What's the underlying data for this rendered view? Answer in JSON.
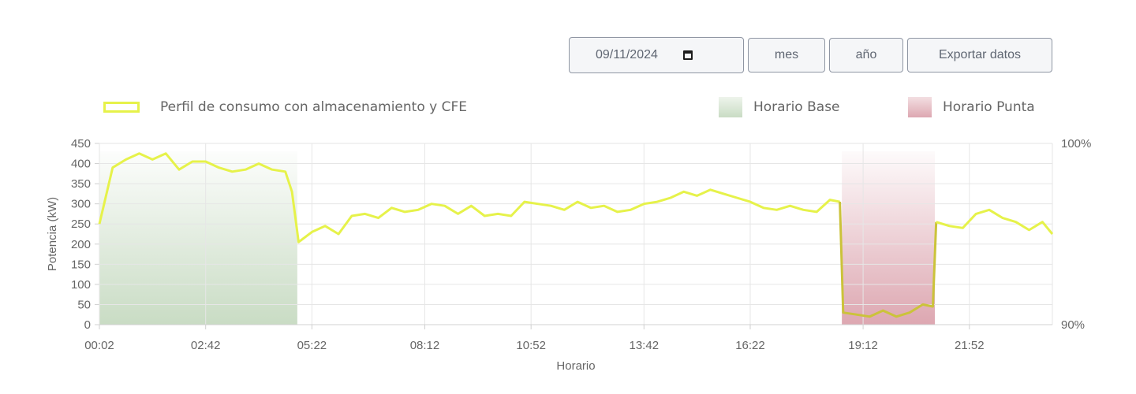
{
  "controls": {
    "date_value": "09/11/2024",
    "month_label": "mes",
    "year_label": "año",
    "export_label": "Exportar datos"
  },
  "legend": {
    "series": "Perfil de consumo con almacenamiento y CFE",
    "base": "Horario Base",
    "punta": "Horario Punta"
  },
  "colors": {
    "line": "#e6f24a",
    "line_in_peak": "#cbc33a",
    "base_fill": "#c9dcc4",
    "punta_fill": "#dda7b1"
  },
  "chart_data": {
    "type": "line",
    "xlabel": "Horario",
    "ylabel": "Potencia (kW)",
    "ylim": [
      0,
      450
    ],
    "yticks": [
      0,
      50,
      100,
      150,
      200,
      250,
      300,
      350,
      400,
      450
    ],
    "y2ticks": [
      "90%",
      "100%"
    ],
    "xticks": [
      "00:02",
      "02:42",
      "05:22",
      "08:12",
      "10:52",
      "13:42",
      "16:22",
      "19:12",
      "21:52"
    ],
    "grid": true,
    "legend_position": "top",
    "bands": [
      {
        "name": "Horario Base",
        "start": "00:02",
        "end": "05:00"
      },
      {
        "name": "Horario Punta",
        "start": "18:40",
        "end": "21:00"
      }
    ],
    "series": [
      {
        "name": "Perfil de consumo con almacenamiento y CFE",
        "x": [
          "00:02",
          "00:22",
          "00:42",
          "01:02",
          "01:22",
          "01:42",
          "02:02",
          "02:22",
          "02:42",
          "03:02",
          "03:22",
          "03:42",
          "04:02",
          "04:22",
          "04:42",
          "04:52",
          "05:02",
          "05:22",
          "05:42",
          "06:02",
          "06:22",
          "06:42",
          "07:02",
          "07:22",
          "07:42",
          "08:02",
          "08:22",
          "08:42",
          "09:02",
          "09:22",
          "09:42",
          "10:02",
          "10:22",
          "10:42",
          "11:02",
          "11:22",
          "11:42",
          "12:02",
          "12:22",
          "12:42",
          "13:02",
          "13:22",
          "13:42",
          "14:02",
          "14:22",
          "14:42",
          "15:02",
          "15:22",
          "15:42",
          "16:02",
          "16:22",
          "16:42",
          "17:02",
          "17:22",
          "17:42",
          "18:02",
          "18:22",
          "18:37",
          "18:42",
          "19:02",
          "19:22",
          "19:42",
          "20:02",
          "20:22",
          "20:42",
          "20:57",
          "21:02",
          "21:22",
          "21:42",
          "22:02",
          "22:22",
          "22:42",
          "23:02",
          "23:22",
          "23:42",
          "23:57"
        ],
        "values": [
          250,
          390,
          410,
          425,
          410,
          425,
          385,
          405,
          405,
          390,
          380,
          385,
          400,
          385,
          380,
          330,
          205,
          230,
          245,
          225,
          270,
          275,
          265,
          290,
          280,
          285,
          300,
          295,
          275,
          295,
          270,
          275,
          270,
          305,
          300,
          295,
          285,
          305,
          290,
          295,
          280,
          285,
          300,
          305,
          315,
          330,
          320,
          335,
          325,
          315,
          305,
          290,
          285,
          295,
          285,
          280,
          310,
          305,
          30,
          25,
          20,
          35,
          20,
          30,
          50,
          45,
          255,
          245,
          240,
          275,
          285,
          265,
          255,
          235,
          255,
          225
        ]
      }
    ]
  }
}
